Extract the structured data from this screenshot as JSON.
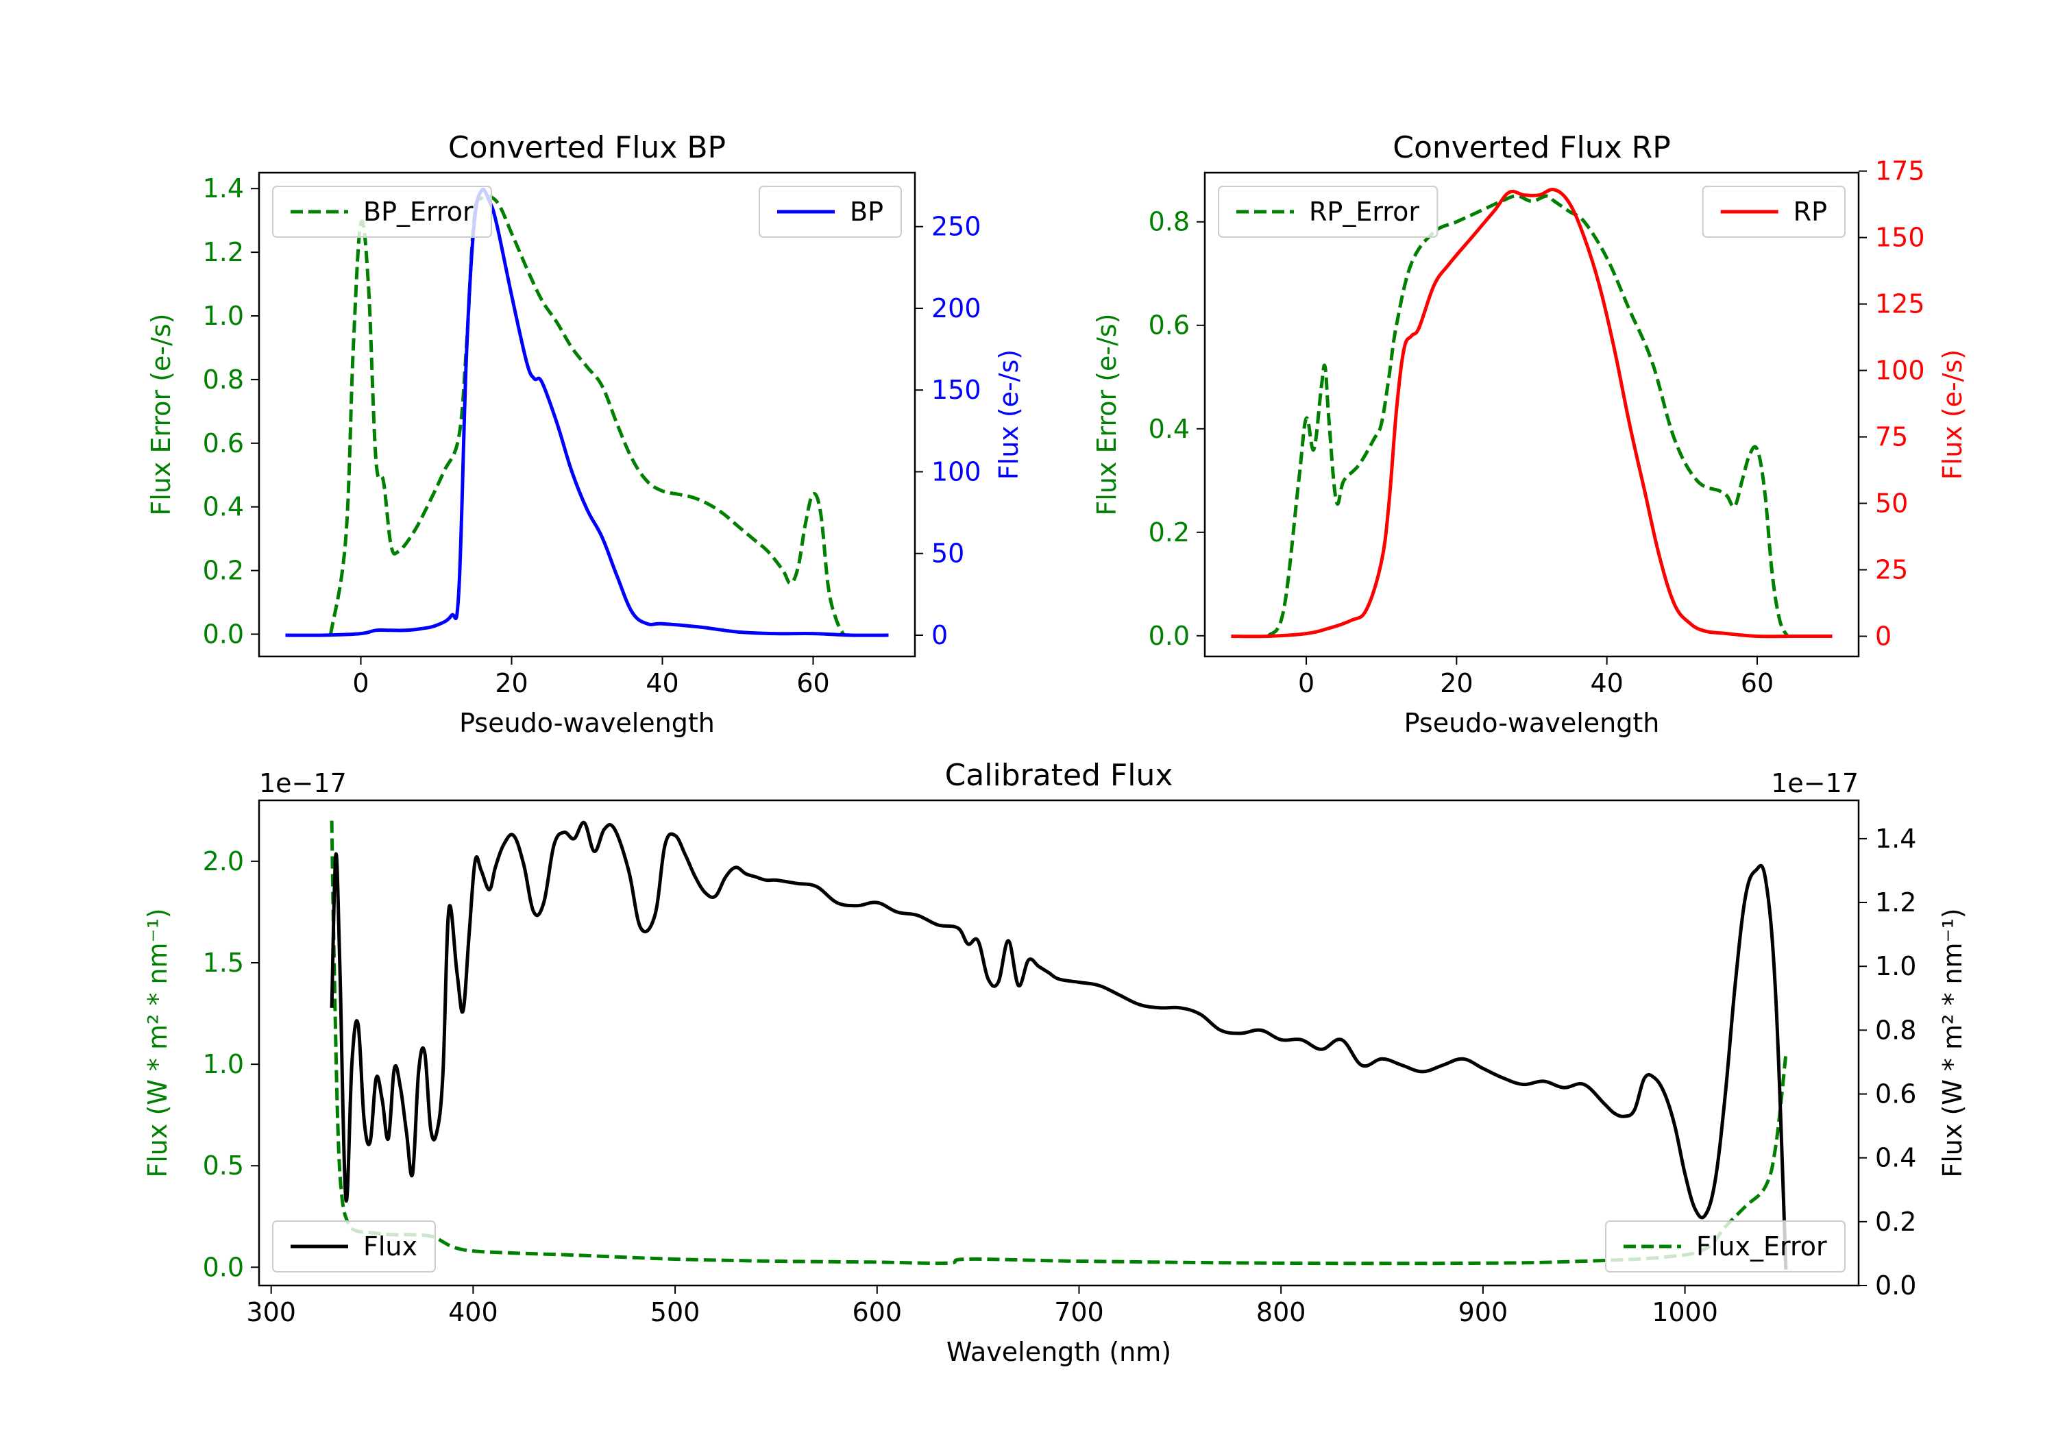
{
  "colors": {
    "green": "#008000",
    "blue": "#0000ff",
    "red": "#ff0000",
    "black": "#000000",
    "frame": "#000000",
    "legend_border": "#cccccc"
  },
  "chart_data": [
    {
      "id": "bp",
      "type": "line",
      "title": "Converted Flux BP",
      "xlabel": "Pseudo-wavelength",
      "ylabel_left": "Flux Error (e-/s)",
      "ylabel_right": "Flux (e-/s)",
      "xlim": [
        -13.5,
        73.5
      ],
      "ylim_left": [
        -0.07,
        1.45
      ],
      "ylim_right": [
        -13,
        283
      ],
      "xticks": [
        0,
        20,
        40,
        60
      ],
      "yticks_left": [
        "0.0",
        "0.2",
        "0.4",
        "0.6",
        "0.8",
        "1.0",
        "1.2",
        "1.4"
      ],
      "yticks_right": [
        "0",
        "50",
        "100",
        "150",
        "200",
        "250"
      ],
      "legend_left": {
        "label": "BP_Error",
        "position": "upper left"
      },
      "legend_right": {
        "label": "BP",
        "position": "upper right"
      },
      "series": [
        {
          "name": "BP_Error",
          "axis": "left",
          "style": "dashed",
          "color": "green",
          "x": [
            -4,
            -2,
            -1,
            0,
            1,
            2,
            3,
            4,
            5,
            7,
            9,
            11,
            13,
            14,
            15,
            16,
            18,
            20,
            22,
            24,
            26,
            28,
            30,
            32,
            34,
            36,
            38,
            40,
            42,
            44,
            46,
            48,
            50,
            52,
            54,
            56,
            57,
            58,
            59,
            60,
            61,
            62,
            63,
            64
          ],
          "y": [
            0.0,
            0.3,
            0.9,
            1.29,
            1.1,
            0.55,
            0.48,
            0.28,
            0.26,
            0.32,
            0.41,
            0.51,
            0.62,
            0.9,
            1.3,
            1.37,
            1.36,
            1.26,
            1.15,
            1.05,
            0.98,
            0.9,
            0.84,
            0.78,
            0.66,
            0.55,
            0.48,
            0.45,
            0.44,
            0.43,
            0.41,
            0.38,
            0.34,
            0.3,
            0.26,
            0.2,
            0.16,
            0.21,
            0.35,
            0.44,
            0.38,
            0.15,
            0.05,
            0.0
          ]
        },
        {
          "name": "BP",
          "axis": "right",
          "style": "solid",
          "color": "blue",
          "x": [
            -10,
            -5,
            0,
            2,
            4,
            6,
            8,
            10,
            12,
            13,
            14,
            15,
            16,
            17,
            18,
            20,
            22,
            23,
            24,
            26,
            28,
            30,
            32,
            34,
            36,
            38,
            40,
            45,
            50,
            55,
            60,
            65,
            70
          ],
          "y": [
            0,
            0,
            1,
            3,
            3,
            3,
            4,
            6,
            12,
            27,
            170,
            250,
            272,
            266,
            252,
            208,
            167,
            157,
            155,
            130,
            100,
            77,
            60,
            36,
            14,
            7,
            7,
            5,
            2,
            1,
            1,
            0,
            0
          ]
        }
      ]
    },
    {
      "id": "rp",
      "type": "line",
      "title": "Converted Flux RP",
      "xlabel": "Pseudo-wavelength",
      "ylabel_left": "Flux Error (e-/s)",
      "ylabel_right": "Flux (e-/s)",
      "xlim": [
        -13.5,
        73.5
      ],
      "ylim_left": [
        -0.04,
        0.895
      ],
      "ylim_right": [
        -7.6,
        174.4
      ],
      "xticks": [
        0,
        20,
        40,
        60
      ],
      "yticks_left": [
        "0.0",
        "0.2",
        "0.4",
        "0.6",
        "0.8"
      ],
      "yticks_right": [
        "0",
        "25",
        "50",
        "75",
        "100",
        "125",
        "150",
        "175"
      ],
      "legend_left": {
        "label": "RP_Error",
        "position": "upper left"
      },
      "legend_right": {
        "label": "RP",
        "position": "upper right"
      },
      "series": [
        {
          "name": "RP_Error",
          "axis": "left",
          "style": "dashed",
          "color": "green",
          "x": [
            -5,
            -3,
            -1,
            0,
            1,
            2,
            2.5,
            3,
            4,
            5,
            7,
            9,
            10,
            11,
            12,
            14,
            17,
            20,
            23,
            26,
            28,
            30,
            32,
            33,
            35,
            37,
            40,
            43,
            46,
            49,
            52,
            55,
            56,
            57,
            58,
            59,
            60,
            61,
            62,
            63,
            64
          ],
          "y": [
            0.0,
            0.05,
            0.3,
            0.42,
            0.36,
            0.48,
            0.52,
            0.42,
            0.26,
            0.3,
            0.33,
            0.38,
            0.41,
            0.5,
            0.6,
            0.72,
            0.78,
            0.8,
            0.82,
            0.84,
            0.85,
            0.84,
            0.85,
            0.84,
            0.82,
            0.8,
            0.73,
            0.63,
            0.53,
            0.38,
            0.3,
            0.28,
            0.27,
            0.25,
            0.3,
            0.35,
            0.36,
            0.28,
            0.12,
            0.03,
            0.0
          ]
        },
        {
          "name": "RP",
          "axis": "right",
          "style": "solid",
          "color": "red",
          "x": [
            -10,
            -5,
            0,
            3,
            6,
            8,
            10,
            11,
            12,
            13,
            14,
            15,
            17,
            19,
            22,
            25,
            27,
            29,
            31,
            33,
            35,
            37,
            39,
            41,
            43,
            45,
            47,
            49,
            51,
            53,
            56,
            60,
            65,
            70
          ],
          "y": [
            0,
            0,
            1,
            3,
            6,
            10,
            28,
            50,
            85,
            108,
            113,
            116,
            132,
            140,
            150,
            160,
            167,
            166,
            166,
            168,
            163,
            150,
            132,
            108,
            80,
            55,
            30,
            12,
            5,
            2,
            1,
            0,
            0,
            0
          ]
        }
      ]
    },
    {
      "id": "cal",
      "type": "line",
      "title": "Calibrated Flux",
      "xlabel": "Wavelength (nm)",
      "ylabel_left": "Flux (W * m² * nm⁻¹)",
      "ylabel_right": "Flux (W * m² * nm⁻¹)",
      "offset_left": "1e−17",
      "offset_right": "1e−17",
      "xlim": [
        294,
        1086
      ],
      "ylim_left": [
        -0.09,
        2.3
      ],
      "ylim_right": [
        0.0,
        1.52
      ],
      "xticks": [
        300,
        400,
        500,
        600,
        700,
        800,
        900,
        1000
      ],
      "yticks_left": [
        "0.0",
        "0.5",
        "1.0",
        "1.5",
        "2.0"
      ],
      "yticks_right": [
        "0.0",
        "0.2",
        "0.4",
        "0.6",
        "0.8",
        "1.0",
        "1.2",
        "1.4"
      ],
      "legend_left": {
        "label": "Flux",
        "position": "lower left"
      },
      "legend_right": {
        "label": "Flux_Error",
        "position": "lower right"
      },
      "series": [
        {
          "name": "Flux_Error",
          "axis": "left",
          "style": "dashed",
          "color": "green",
          "x": [
            330,
            331,
            333,
            335,
            338,
            342,
            350,
            360,
            370,
            380,
            390,
            400,
            420,
            450,
            500,
            550,
            600,
            635,
            645,
            700,
            800,
            900,
            950,
            990,
            1010,
            1020,
            1030,
            1040,
            1045,
            1050
          ],
          "y": [
            2.2,
            1.6,
            0.7,
            0.35,
            0.22,
            0.18,
            0.17,
            0.16,
            0.16,
            0.15,
            0.1,
            0.08,
            0.07,
            0.06,
            0.04,
            0.03,
            0.025,
            0.02,
            0.04,
            0.03,
            0.02,
            0.02,
            0.03,
            0.05,
            0.09,
            0.2,
            0.3,
            0.4,
            0.6,
            1.05
          ]
        },
        {
          "name": "Flux",
          "axis": "right",
          "style": "solid",
          "color": "black",
          "x": [
            330,
            332,
            334,
            337,
            340,
            343,
            346,
            349,
            352,
            355,
            358,
            361,
            364,
            367,
            370,
            373,
            376,
            379,
            382,
            385,
            388,
            392,
            395,
            398,
            401,
            404,
            408,
            411,
            415,
            420,
            425,
            430,
            435,
            440,
            445,
            450,
            455,
            460,
            465,
            470,
            477,
            483,
            490,
            495,
            500,
            505,
            510,
            515,
            520,
            525,
            530,
            535,
            540,
            545,
            550,
            560,
            570,
            580,
            590,
            600,
            610,
            620,
            630,
            640,
            645,
            650,
            655,
            660,
            665,
            670,
            675,
            680,
            685,
            690,
            700,
            710,
            720,
            730,
            740,
            750,
            760,
            770,
            780,
            790,
            800,
            810,
            820,
            830,
            840,
            850,
            860,
            870,
            880,
            890,
            900,
            910,
            920,
            930,
            940,
            950,
            960,
            965,
            970,
            975,
            980,
            985,
            990,
            995,
            1000,
            1005,
            1010,
            1015,
            1020,
            1025,
            1030,
            1035,
            1040,
            1045,
            1050
          ],
          "y": [
            0.87,
            1.35,
            1.0,
            0.27,
            0.7,
            0.82,
            0.52,
            0.45,
            0.65,
            0.58,
            0.46,
            0.68,
            0.62,
            0.48,
            0.35,
            0.67,
            0.73,
            0.49,
            0.48,
            0.66,
            1.18,
            0.98,
            0.86,
            1.1,
            1.33,
            1.3,
            1.24,
            1.31,
            1.38,
            1.41,
            1.32,
            1.17,
            1.2,
            1.38,
            1.42,
            1.4,
            1.45,
            1.36,
            1.43,
            1.43,
            1.3,
            1.12,
            1.16,
            1.38,
            1.41,
            1.35,
            1.28,
            1.23,
            1.22,
            1.28,
            1.31,
            1.29,
            1.28,
            1.27,
            1.27,
            1.26,
            1.25,
            1.2,
            1.19,
            1.2,
            1.17,
            1.16,
            1.13,
            1.12,
            1.07,
            1.08,
            0.96,
            0.95,
            1.08,
            0.94,
            1.02,
            1.0,
            0.98,
            0.96,
            0.95,
            0.94,
            0.91,
            0.88,
            0.87,
            0.87,
            0.85,
            0.8,
            0.79,
            0.8,
            0.77,
            0.77,
            0.74,
            0.77,
            0.69,
            0.71,
            0.69,
            0.67,
            0.69,
            0.71,
            0.68,
            0.65,
            0.63,
            0.64,
            0.62,
            0.63,
            0.57,
            0.54,
            0.53,
            0.55,
            0.65,
            0.65,
            0.6,
            0.5,
            0.35,
            0.24,
            0.22,
            0.33,
            0.6,
            0.95,
            1.22,
            1.3,
            1.27,
            0.9,
            0.05
          ]
        }
      ]
    }
  ]
}
